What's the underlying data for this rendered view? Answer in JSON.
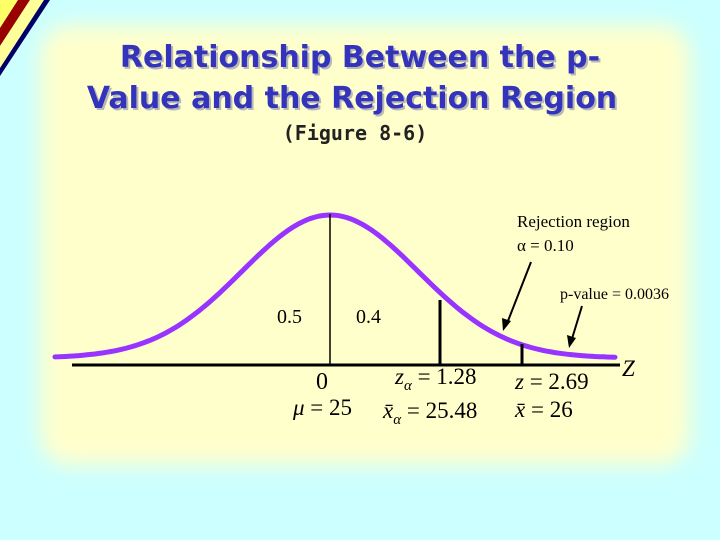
{
  "title": {
    "line1": "Relationship Between the p-",
    "line2": "Value and the Rejection Region"
  },
  "subtitle": "(Figure 8-6)",
  "annotations": {
    "rejection_region": "Rejection region",
    "alpha": "α = 0.10",
    "p_value": "p-value = 0.0036"
  },
  "areas": {
    "left": "0.5",
    "middle": "0.4"
  },
  "axis": {
    "zero": "0",
    "z_axis": "Z"
  },
  "labels": {
    "z_alpha": {
      "symbol": "z",
      "subscript": "α",
      "text": " = 1.28"
    },
    "mu": {
      "symbol": "μ",
      "text": " = 25"
    },
    "x_alpha": {
      "symbol": "x̄",
      "subscript": "α",
      "text": " = 25.48"
    },
    "z": {
      "symbol": "z",
      "text": " = 2.69"
    },
    "x": {
      "symbol": "x̄",
      "text": " = 26"
    }
  }
}
